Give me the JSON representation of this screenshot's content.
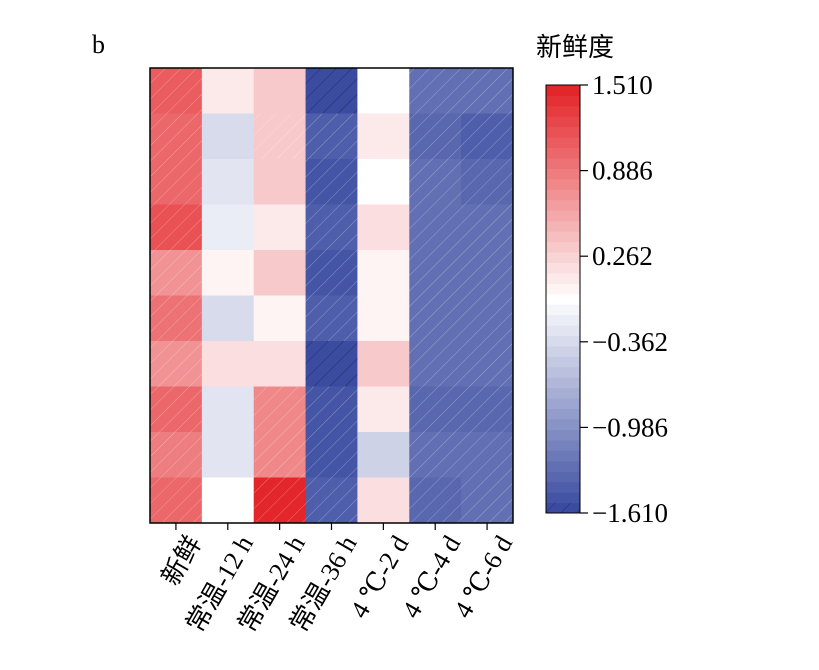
{
  "chart_data": {
    "type": "heatmap",
    "panel_label": "b",
    "columns": [
      "新鲜",
      "常温-12 h",
      "常温-24 h",
      "常温-36 h",
      "4 ℃-2 d",
      "4 ℃-4 d",
      "4 ℃-6 d"
    ],
    "row_count": 10,
    "values": [
      [
        1.1,
        0.1,
        0.3,
        -1.55,
        -0.05,
        -1.25,
        -1.25
      ],
      [
        1.05,
        -0.35,
        0.35,
        -1.4,
        0.1,
        -1.35,
        -1.4
      ],
      [
        1.0,
        -0.25,
        0.3,
        -1.5,
        -0.05,
        -1.3,
        -1.35
      ],
      [
        1.2,
        -0.2,
        0.1,
        -1.45,
        0.2,
        -1.3,
        -1.3
      ],
      [
        0.7,
        0.0,
        0.3,
        -1.5,
        0.0,
        -1.3,
        -1.3
      ],
      [
        0.95,
        -0.35,
        0.0,
        -1.45,
        0.0,
        -1.3,
        -1.3
      ],
      [
        0.7,
        0.2,
        0.15,
        -1.6,
        0.3,
        -1.3,
        -1.3
      ],
      [
        1.05,
        -0.3,
        0.8,
        -1.5,
        0.1,
        -1.35,
        -1.35
      ],
      [
        0.85,
        -0.25,
        0.8,
        -1.5,
        -0.4,
        -1.3,
        -1.3
      ],
      [
        1.0,
        -0.05,
        1.5,
        -1.45,
        0.2,
        -1.35,
        -1.3
      ]
    ],
    "colorbar": {
      "title": "新鲜度",
      "vmin": -1.61,
      "vmax": 1.51,
      "ticks": [
        1.51,
        0.886,
        0.262,
        -0.362,
        -0.986,
        -1.61
      ],
      "tick_labels": [
        "1.510",
        "0.886",
        "0.262",
        "−0.362",
        "−0.986",
        "−1.610"
      ],
      "levels": 41
    },
    "colors": {
      "low": "#3b4ca0",
      "mid": "#ffffff",
      "high": "#e3262a"
    },
    "hatch": "diagonal"
  }
}
